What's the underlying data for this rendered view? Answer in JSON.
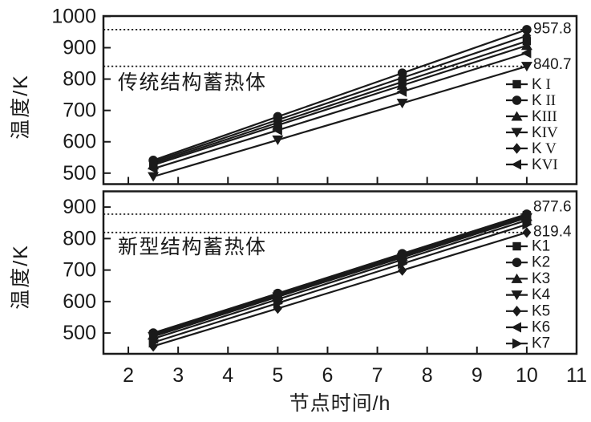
{
  "figure": {
    "background": "#ffffff",
    "ink": "#1a1a1a",
    "xlabel": "节点时间/h",
    "xticks": [
      "2",
      "3",
      "4",
      "5",
      "6",
      "7",
      "8",
      "9",
      "10",
      "11"
    ],
    "xlim": [
      1.5,
      11
    ]
  },
  "chart_data": [
    {
      "type": "line",
      "panel": "top",
      "annotation": "传统结构蓄热体",
      "ylabel": "温度/K",
      "xlabel": "节点时间/h",
      "x": [
        2.5,
        5,
        7.5,
        10
      ],
      "xlim": [
        1.5,
        11
      ],
      "ylim": [
        465,
        1001
      ],
      "yticks": [
        1000,
        900,
        800,
        700,
        600,
        500
      ],
      "grid": false,
      "legend_position": "lower right",
      "legend_numeral_font": "serif",
      "ref_lines": [
        {
          "value": 957.8,
          "label": "957.8",
          "label_dy": -1
        },
        {
          "value": 840.7,
          "label": "840.7",
          "label_dy": -2
        }
      ],
      "series": [
        {
          "name": "K I",
          "marker": "square",
          "values": [
            531,
            661,
            791,
            921
          ]
        },
        {
          "name": "K II",
          "marker": "circle",
          "values": [
            541,
            680,
            819,
            957.8
          ]
        },
        {
          "name": "KIII",
          "marker": "triangle-up",
          "values": [
            526,
            653,
            780,
            907
          ]
        },
        {
          "name": "KIV",
          "marker": "triangle-down",
          "values": [
            489,
            606,
            723,
            840.7
          ]
        },
        {
          "name": "K V",
          "marker": "diamond",
          "values": [
            536,
            670,
            804,
            938
          ]
        },
        {
          "name": "KVI",
          "marker": "triangle-left",
          "values": [
            514,
            637,
            760,
            883
          ]
        }
      ]
    },
    {
      "type": "line",
      "panel": "bottom",
      "annotation": "新型结构蓄热体",
      "ylabel": "温度/K",
      "xlabel": "节点时间/h",
      "x": [
        2.5,
        5,
        7.5,
        10
      ],
      "xlim": [
        1.5,
        11
      ],
      "ylim": [
        434,
        950
      ],
      "yticks": [
        900,
        800,
        700,
        600,
        500
      ],
      "grid": false,
      "legend_position": "lower right",
      "ref_lines": [
        {
          "value": 877.6,
          "label": "877.6",
          "label_dy": -9
        },
        {
          "value": 819.4,
          "label": "819.4",
          "label_dy": -1
        }
      ],
      "series": [
        {
          "name": "K1",
          "marker": "square",
          "values": [
            496,
            622,
            748,
            874
          ]
        },
        {
          "name": "K2",
          "marker": "circle",
          "values": [
            500,
            626,
            752,
            877.6
          ]
        },
        {
          "name": "K3",
          "marker": "triangle-up",
          "values": [
            493,
            619,
            744,
            870
          ]
        },
        {
          "name": "K4",
          "marker": "triangle-down",
          "values": [
            489,
            615,
            740,
            866
          ]
        },
        {
          "name": "K5",
          "marker": "diamond",
          "values": [
            458,
            578,
            699,
            819.4
          ]
        },
        {
          "name": "K6",
          "marker": "triangle-left",
          "values": [
            482,
            607,
            733,
            858
          ]
        },
        {
          "name": "K7",
          "marker": "triangle-right",
          "values": [
            470,
            595,
            720,
            845
          ]
        }
      ]
    }
  ]
}
